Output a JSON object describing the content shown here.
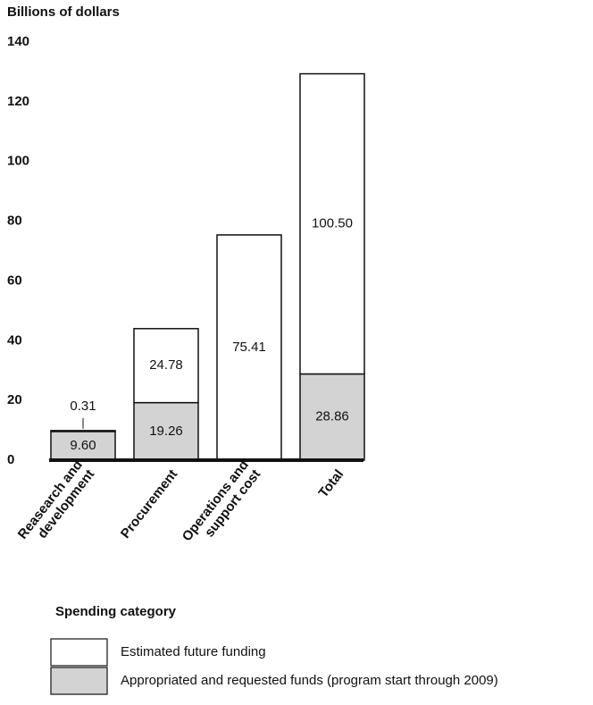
{
  "chart_data": {
    "type": "stacked_bar",
    "y_label": "Billions of dollars",
    "x_label": "Spending category",
    "categories": [
      [
        "Reasearch and",
        "development"
      ],
      [
        "Procurement"
      ],
      [
        "Operations and",
        "support cost"
      ],
      [
        "Total"
      ]
    ],
    "series": [
      {
        "name": "Appropriated and requested funds (program start through 2009)",
        "color": "#d3d3d3",
        "values": [
          9.6,
          19.26,
          null,
          28.86
        ],
        "value_labels": [
          "9.60",
          "19.26",
          null,
          "28.86"
        ]
      },
      {
        "name": "Estimated future funding",
        "color": "#ffffff",
        "values": [
          0.31,
          24.78,
          75.41,
          100.5
        ],
        "value_labels": [
          "0.31",
          "24.78",
          "75.41",
          "100.50"
        ]
      }
    ],
    "ylim": [
      0,
      140
    ],
    "yticks": [
      0,
      20,
      40,
      60,
      80,
      100,
      120,
      140
    ],
    "grid": false
  }
}
